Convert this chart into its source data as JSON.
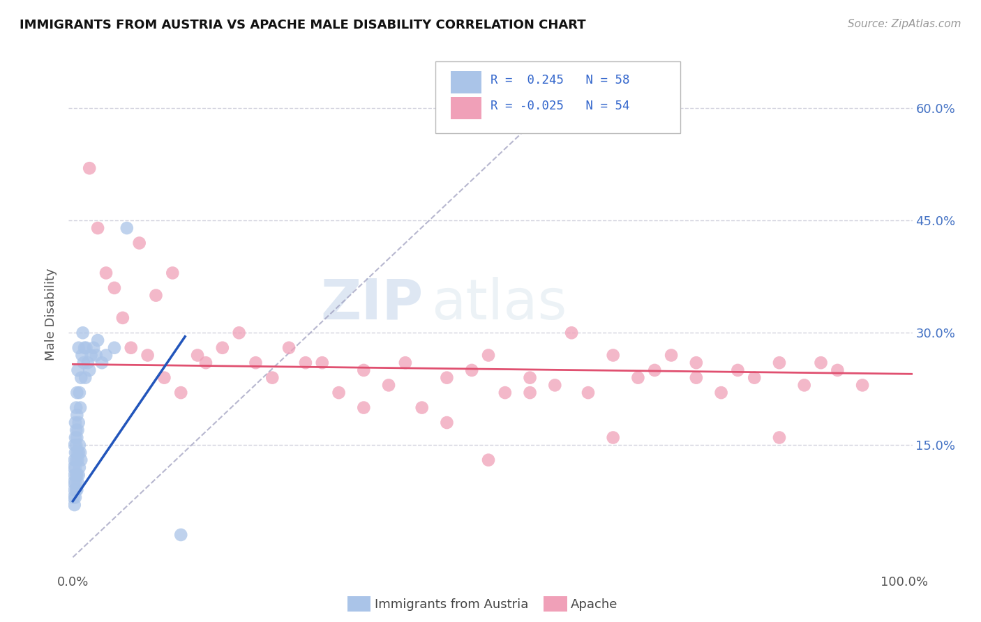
{
  "title": "IMMIGRANTS FROM AUSTRIA VS APACHE MALE DISABILITY CORRELATION CHART",
  "source": "Source: ZipAtlas.com",
  "ylabel": "Male Disability",
  "yticks": [
    "15.0%",
    "30.0%",
    "45.0%",
    "60.0%"
  ],
  "ytick_values": [
    0.15,
    0.3,
    0.45,
    0.6
  ],
  "legend_labels": [
    "Immigrants from Austria",
    "Apache"
  ],
  "legend_r1": "R =  0.245",
  "legend_n1": "N = 58",
  "legend_r2": "R = -0.025",
  "legend_n2": "N = 54",
  "color_blue": "#aac4e8",
  "color_pink": "#f0a0b8",
  "color_blue_line": "#2255bb",
  "color_pink_line": "#e05070",
  "color_dashed": "#9999bb",
  "watermark_zip": "ZIP",
  "watermark_atlas": "atlas",
  "austria_x": [
    0.001,
    0.001,
    0.001,
    0.002,
    0.002,
    0.002,
    0.002,
    0.002,
    0.003,
    0.003,
    0.003,
    0.003,
    0.003,
    0.003,
    0.004,
    0.004,
    0.004,
    0.004,
    0.004,
    0.004,
    0.005,
    0.005,
    0.005,
    0.005,
    0.005,
    0.005,
    0.006,
    0.006,
    0.006,
    0.006,
    0.007,
    0.007,
    0.007,
    0.007,
    0.008,
    0.008,
    0.008,
    0.009,
    0.009,
    0.01,
    0.01,
    0.011,
    0.012,
    0.013,
    0.014,
    0.015,
    0.016,
    0.018,
    0.02,
    0.022,
    0.025,
    0.028,
    0.03,
    0.035,
    0.04,
    0.05,
    0.065,
    0.13
  ],
  "austria_y": [
    0.08,
    0.1,
    0.12,
    0.07,
    0.09,
    0.11,
    0.13,
    0.15,
    0.08,
    0.1,
    0.12,
    0.14,
    0.16,
    0.18,
    0.09,
    0.11,
    0.13,
    0.15,
    0.17,
    0.2,
    0.09,
    0.11,
    0.14,
    0.16,
    0.19,
    0.22,
    0.1,
    0.13,
    0.17,
    0.25,
    0.11,
    0.14,
    0.18,
    0.28,
    0.12,
    0.15,
    0.22,
    0.14,
    0.2,
    0.13,
    0.24,
    0.27,
    0.3,
    0.26,
    0.28,
    0.24,
    0.28,
    0.26,
    0.25,
    0.27,
    0.28,
    0.27,
    0.29,
    0.26,
    0.27,
    0.28,
    0.44,
    0.03
  ],
  "apache_x": [
    0.02,
    0.03,
    0.04,
    0.05,
    0.06,
    0.07,
    0.08,
    0.09,
    0.1,
    0.11,
    0.12,
    0.13,
    0.15,
    0.16,
    0.18,
    0.2,
    0.22,
    0.24,
    0.26,
    0.28,
    0.3,
    0.32,
    0.35,
    0.38,
    0.4,
    0.42,
    0.45,
    0.48,
    0.5,
    0.52,
    0.55,
    0.58,
    0.6,
    0.62,
    0.65,
    0.68,
    0.7,
    0.72,
    0.75,
    0.78,
    0.8,
    0.82,
    0.85,
    0.88,
    0.9,
    0.92,
    0.95,
    0.35,
    0.45,
    0.55,
    0.65,
    0.75,
    0.85,
    0.5
  ],
  "apache_y": [
    0.52,
    0.44,
    0.38,
    0.36,
    0.32,
    0.28,
    0.42,
    0.27,
    0.35,
    0.24,
    0.38,
    0.22,
    0.27,
    0.26,
    0.28,
    0.3,
    0.26,
    0.24,
    0.28,
    0.26,
    0.26,
    0.22,
    0.25,
    0.23,
    0.26,
    0.2,
    0.24,
    0.25,
    0.27,
    0.22,
    0.24,
    0.23,
    0.3,
    0.22,
    0.27,
    0.24,
    0.25,
    0.27,
    0.26,
    0.22,
    0.25,
    0.24,
    0.26,
    0.23,
    0.26,
    0.25,
    0.23,
    0.2,
    0.18,
    0.22,
    0.16,
    0.24,
    0.16,
    0.13
  ]
}
